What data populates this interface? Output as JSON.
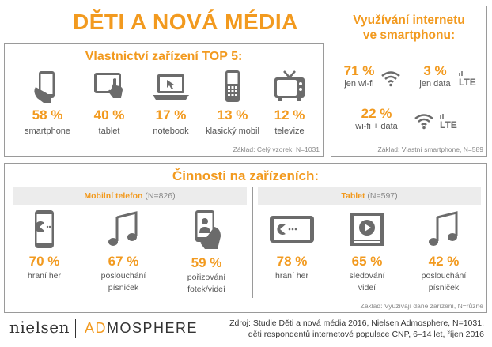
{
  "title": "DĚTI A NOVÁ MÉDIA",
  "ownership": {
    "heading": "Vlastnictví zařízení TOP 5:",
    "items": [
      {
        "pct": "58 %",
        "label": "smartphone",
        "icon": "smartphone-hand-icon",
        "value": 58
      },
      {
        "pct": "40 %",
        "label": "tablet",
        "icon": "tablet-hand-icon",
        "value": 40
      },
      {
        "pct": "17 %",
        "label": "notebook",
        "icon": "notebook-icon",
        "value": 17
      },
      {
        "pct": "13 %",
        "label": "klasický mobil",
        "icon": "classic-mobile-icon",
        "value": 13
      },
      {
        "pct": "12 %",
        "label": "televize",
        "icon": "television-icon",
        "value": 12
      }
    ],
    "note": "Základ: Celý vzorek, N=1031"
  },
  "internet": {
    "heading_line1": "Využívání internetu",
    "heading_line2": "ve smartphonu:",
    "stats": [
      {
        "pct": "71 %",
        "label": "jen wi-fi",
        "icon": "wifi-icon",
        "value": 71
      },
      {
        "pct": "3 %",
        "label": "jen data",
        "icon": "lte-icon",
        "value": 3
      },
      {
        "pct": "22 %",
        "label": "wi-fi + data",
        "icon": "wifi-lte-icon",
        "value": 22
      }
    ],
    "lte_text": "LTE",
    "note": "Základ: Vlastní smartphone, N=589"
  },
  "activities": {
    "heading": "Činnosti na zařízeních:",
    "mobile": {
      "title": "Mobilní telefon",
      "n": "(N=826)",
      "items": [
        {
          "pct": "70 %",
          "label1": "hraní her",
          "label2": "",
          "icon": "phone-game-icon",
          "value": 70
        },
        {
          "pct": "67 %",
          "label1": "poslouchání",
          "label2": "písniček",
          "icon": "music-note-icon",
          "value": 67
        },
        {
          "pct": "59 %",
          "label1": "pořizování",
          "label2": "fotek/videí",
          "icon": "phone-camera-icon",
          "value": 59
        }
      ]
    },
    "tablet": {
      "title": "Tablet",
      "n": "(N=597)",
      "items": [
        {
          "pct": "78 %",
          "label1": "hraní her",
          "label2": "",
          "icon": "tablet-game-icon",
          "value": 78
        },
        {
          "pct": "65 %",
          "label1": "sledování",
          "label2": "videí",
          "icon": "video-player-icon",
          "value": 65
        },
        {
          "pct": "42 %",
          "label1": "poslouchání",
          "label2": "písniček",
          "icon": "music-note-icon",
          "value": 42
        }
      ]
    },
    "note": "Základ: Využívají dané zařízení, N=různé"
  },
  "footer": {
    "logo_nielsen": "nielsen",
    "logo_ad": "AD",
    "logo_mosphere": "MOSPHERE",
    "source_line1": "Zdroj: Studie Děti a nová média 2016, Nielsen Admosphere, N=1031,",
    "source_line2": "děti respondentů internetové populace ČNP, 6–14 let, říjen 2016"
  },
  "colors": {
    "accent": "#f29a1f",
    "icon": "#6b6b6b",
    "border": "#9a9a9a"
  }
}
